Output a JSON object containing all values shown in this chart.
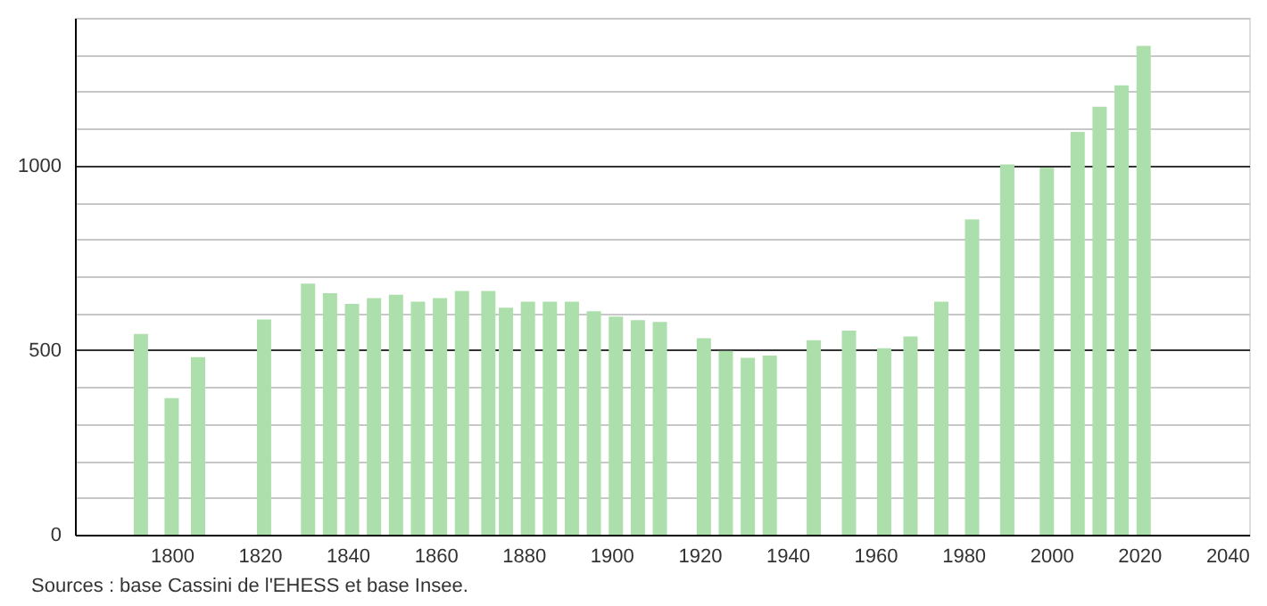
{
  "chart_data": {
    "type": "bar",
    "x": [
      1793,
      1800,
      1806,
      1821,
      1831,
      1836,
      1841,
      1846,
      1851,
      1856,
      1861,
      1866,
      1872,
      1876,
      1881,
      1886,
      1891,
      1896,
      1901,
      1906,
      1911,
      1921,
      1926,
      1931,
      1936,
      1946,
      1954,
      1962,
      1968,
      1975,
      1982,
      1990,
      1999,
      2006,
      2011,
      2016,
      2021
    ],
    "values": [
      544,
      370,
      481,
      583,
      680,
      654,
      625,
      641,
      650,
      631,
      641,
      660,
      660,
      615,
      631,
      631,
      631,
      605,
      591,
      581,
      576,
      532,
      498,
      479,
      485,
      527,
      553,
      505,
      537,
      631,
      854,
      1003,
      994,
      1091,
      1159,
      1217,
      1324
    ],
    "color": "#addfad",
    "xlim": [
      1778,
      2045
    ],
    "xticks": [
      1800,
      1820,
      1840,
      1860,
      1880,
      1900,
      1920,
      1940,
      1960,
      1980,
      2000,
      2020,
      2040
    ],
    "ylim": [
      0,
      1400
    ],
    "yticks": [
      0,
      {
        "value": 100,
        "label": null
      },
      {
        "value": 200,
        "label": null
      },
      {
        "value": 300,
        "label": null
      },
      {
        "value": 400,
        "label": null
      },
      500,
      {
        "value": 600,
        "label": null
      },
      {
        "value": 700,
        "label": null
      },
      {
        "value": 800,
        "label": null
      },
      {
        "value": 900,
        "label": null
      },
      1000,
      {
        "value": 1100,
        "label": null
      },
      {
        "value": 1200,
        "label": null
      },
      {
        "value": 1300,
        "label": null
      },
      {
        "value": 1400,
        "label": null
      }
    ],
    "grid": "y",
    "annotations": [
      "Sources : base Cassini de l'EHESS et base Insee."
    ]
  }
}
